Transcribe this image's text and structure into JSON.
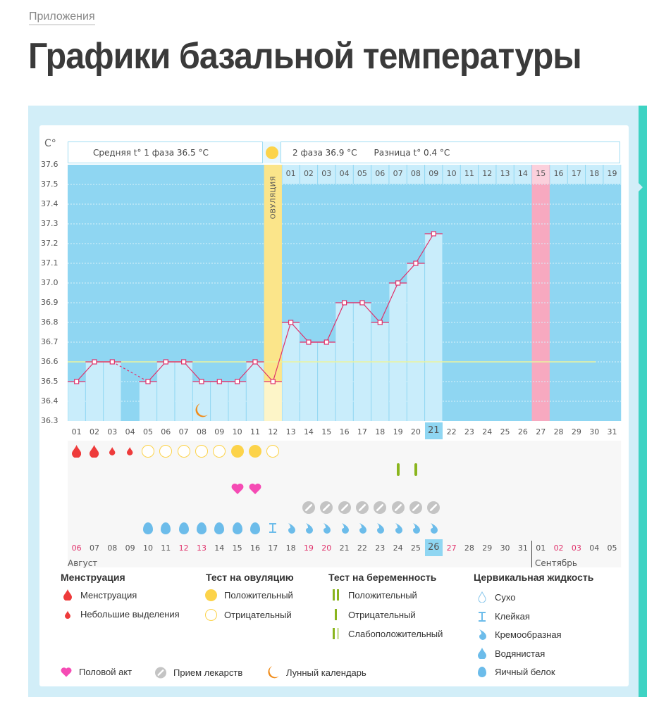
{
  "breadcrumb": "Приложения",
  "title": "Графики базальной температуры",
  "header": {
    "unit": "C°",
    "phase1": "Средняя t° 1 фаза 36.5 °C",
    "phase2": "2 фаза 36.9 °C",
    "diff": "Разница t° 0.4 °C",
    "ovulation_label": "ОВУЛЯЦИЯ"
  },
  "colors": {
    "plot_bg": "#8fd6f2",
    "bar": "#c9edfb",
    "line": "#e0306a",
    "ovulation": "#fbe58a",
    "expected_period": "#f7a9c0",
    "average_line": "#eaf3a0",
    "menstruation": "#ee3b3b",
    "ovulation_test": "#fcd34a",
    "pregnancy_test": "#8ab51e",
    "heart": "#f54bb4",
    "pill": "#c4c4c4",
    "cervical": "#6cbcea",
    "moon": "#f08c1a"
  },
  "chart_data": {
    "type": "line",
    "ylabel": "C°",
    "ylim": [
      36.3,
      37.6
    ],
    "yticks": [
      "37.6",
      "37.5",
      "37.4",
      "37.3",
      "37.2",
      "37.1",
      "37.0",
      "36.9",
      "36.8",
      "36.7",
      "36.6",
      "36.5",
      "36.4",
      "36.3"
    ],
    "cycle_days": [
      "01",
      "02",
      "03",
      "04",
      "05",
      "06",
      "07",
      "08",
      "09",
      "10",
      "11",
      "12",
      "13",
      "14",
      "15",
      "16",
      "17",
      "18",
      "19",
      "20",
      "21",
      "22",
      "23",
      "24",
      "25",
      "26",
      "27",
      "28",
      "29",
      "30",
      "31"
    ],
    "values": [
      36.5,
      36.6,
      36.6,
      null,
      36.5,
      36.6,
      36.6,
      36.5,
      36.5,
      36.5,
      36.6,
      36.5,
      36.8,
      36.7,
      36.7,
      36.9,
      36.9,
      36.8,
      37.0,
      37.1,
      37.25,
      null,
      null,
      null,
      null,
      null,
      null,
      null,
      null,
      null,
      null
    ],
    "average_line": 36.6,
    "ovulation_day": "12",
    "current_day": "21",
    "expected_period_day": "27",
    "phase2_days": [
      "01",
      "02",
      "03",
      "04",
      "05",
      "06",
      "07",
      "08",
      "09",
      "10",
      "11",
      "12",
      "13",
      "14",
      "15",
      "16",
      "17",
      "18",
      "19"
    ],
    "calendar_dates": [
      "06",
      "07",
      "08",
      "09",
      "10",
      "11",
      "12",
      "13",
      "14",
      "15",
      "16",
      "17",
      "18",
      "19",
      "20",
      "21",
      "22",
      "23",
      "24",
      "25",
      "26",
      "27",
      "28",
      "29",
      "30",
      "31",
      "01",
      "02",
      "03",
      "04",
      "05"
    ],
    "weekend_dates_idx": [
      0,
      6,
      7,
      13,
      14,
      21,
      27,
      28
    ],
    "months": [
      "Август",
      "Сентябрь"
    ],
    "moon_days": [
      "08"
    ]
  },
  "markers": {
    "row1": {
      "01": "menstruation",
      "02": "menstruation",
      "03": "spotting",
      "04": "spotting",
      "05": "ovul-negative",
      "06": "ovul-negative",
      "07": "ovul-negative",
      "08": "ovul-negative",
      "09": "ovul-negative",
      "10": "ovul-positive",
      "11": "ovul-positive",
      "12": "ovul-negative"
    },
    "row2": {
      "19": "preg-negative",
      "20": "preg-negative"
    },
    "row3": {
      "10": "heart",
      "11": "heart"
    },
    "row4": {
      "14": "pill",
      "15": "pill",
      "16": "pill",
      "17": "pill",
      "18": "pill",
      "19": "pill",
      "20": "pill",
      "21": "pill"
    },
    "row5": {
      "05": "egg-white",
      "06": "egg-white",
      "07": "egg-white",
      "08": "egg-white",
      "09": "egg-white",
      "10": "egg-white",
      "11": "egg-white",
      "12": "sticky",
      "13": "creamy",
      "14": "creamy",
      "15": "creamy",
      "16": "creamy",
      "17": "creamy",
      "18": "creamy",
      "19": "creamy",
      "20": "creamy",
      "21": "creamy"
    }
  },
  "legend": {
    "menstruation": {
      "title": "Менструация",
      "items": [
        "Менструация",
        "Небольшие выделения"
      ]
    },
    "ovulation_test": {
      "title": "Тест на овуляцию",
      "items": [
        "Положительный",
        "Отрицательный"
      ]
    },
    "pregnancy_test": {
      "title": "Тест на беременность",
      "items": [
        "Положительный",
        "Отрицательный",
        "Слабоположительный"
      ]
    },
    "cervical": {
      "title": "Цервикальная жидкость",
      "items": [
        "Сухо",
        "Клейкая",
        "Кремообразная",
        "Водянистая",
        "Яичный белок"
      ]
    },
    "other": [
      "Половой акт",
      "Прием лекарств",
      "Лунный календарь"
    ]
  }
}
